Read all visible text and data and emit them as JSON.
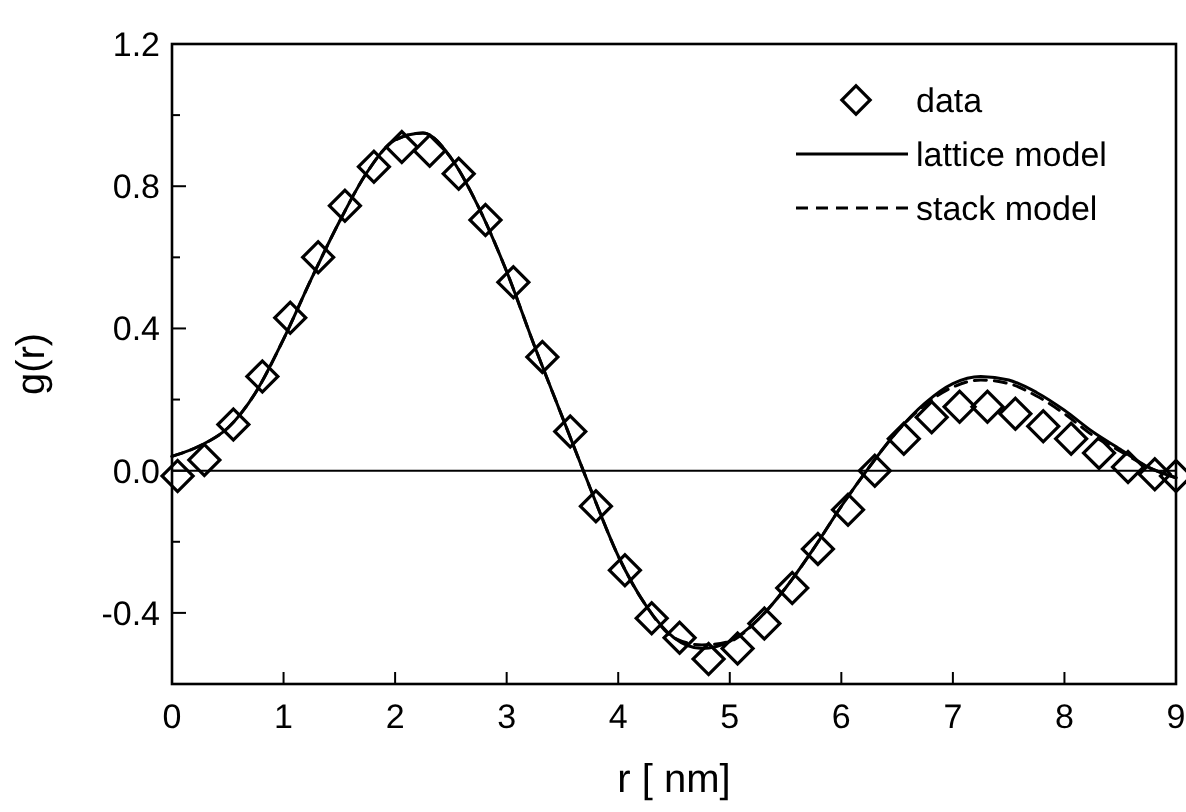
{
  "chart_data": {
    "type": "scatter",
    "xlabel": "r [ nm]",
    "ylabel": "g(r)",
    "xlim": [
      0,
      9
    ],
    "xticks": [
      0,
      1,
      2,
      3,
      4,
      5,
      6,
      7,
      8,
      9
    ],
    "ylim": [
      -0.6,
      1.2
    ],
    "yticks": [
      {
        "value": -0.6,
        "label": null
      },
      {
        "value": -0.4,
        "label": "-0.4"
      },
      {
        "value": -0.2,
        "label": null
      },
      {
        "value": 0,
        "label": "0.0"
      },
      {
        "value": 0.2,
        "label": null
      },
      {
        "value": 0.4,
        "label": "0.4"
      },
      {
        "value": 0.6,
        "label": null
      },
      {
        "value": 0.8,
        "label": "0.8"
      },
      {
        "value": 1.0,
        "label": null
      },
      {
        "value": 1.2,
        "label": "1.2"
      }
    ],
    "legend": "top right",
    "grid": false,
    "ref_lines": [
      {
        "axis": "y",
        "value": 0,
        "color": "#000000"
      }
    ],
    "series": [
      {
        "name": "data",
        "marker": "diamond",
        "color": "#000000",
        "x": [
          0.05,
          0.29,
          0.55,
          0.81,
          1.06,
          1.31,
          1.55,
          1.81,
          2.06,
          2.31,
          2.57,
          2.81,
          3.06,
          3.32,
          3.57,
          3.8,
          4.06,
          4.3,
          4.55,
          4.81,
          5.07,
          5.31,
          5.56,
          5.79,
          6.06,
          6.3,
          6.56,
          6.81,
          7.06,
          7.31,
          7.56,
          7.81,
          8.06,
          8.31,
          8.57,
          8.81,
          9.0
        ],
        "values": [
          -0.015,
          0.03,
          0.13,
          0.265,
          0.43,
          0.6,
          0.745,
          0.855,
          0.91,
          0.9,
          0.835,
          0.705,
          0.53,
          0.32,
          0.11,
          -0.1,
          -0.28,
          -0.415,
          -0.47,
          -0.53,
          -0.5,
          -0.43,
          -0.33,
          -0.22,
          -0.11,
          0.0,
          0.09,
          0.15,
          0.18,
          0.18,
          0.16,
          0.125,
          0.09,
          0.05,
          0.01,
          -0.01,
          -0.015
        ]
      },
      {
        "name": "lattice model",
        "type": "line",
        "line_style": "solid",
        "marker": "none",
        "color": "#000000",
        "x": [
          0,
          0.25,
          0.5,
          0.75,
          1,
          1.25,
          1.5,
          1.75,
          2,
          2.25,
          2.5,
          2.75,
          3,
          3.25,
          3.5,
          3.75,
          4,
          4.25,
          4.5,
          4.75,
          5,
          5.25,
          5.5,
          5.75,
          6,
          6.25,
          6.5,
          6.75,
          7,
          7.25,
          7.5,
          7.75,
          8,
          8.25,
          8.5,
          8.75,
          9
        ],
        "values": [
          0.04,
          0.07,
          0.12,
          0.22,
          0.37,
          0.54,
          0.7,
          0.84,
          0.93,
          0.95,
          0.88,
          0.74,
          0.56,
          0.35,
          0.15,
          -0.05,
          -0.24,
          -0.38,
          -0.47,
          -0.5,
          -0.48,
          -0.42,
          -0.33,
          -0.22,
          -0.1,
          0.01,
          0.11,
          0.19,
          0.245,
          0.265,
          0.255,
          0.22,
          0.17,
          0.11,
          0.06,
          0.01,
          -0.02
        ]
      },
      {
        "name": "stack model",
        "type": "line",
        "line_style": "dashed",
        "marker": "none",
        "color": "#000000",
        "x": [
          0,
          0.25,
          0.5,
          0.75,
          1,
          1.25,
          1.5,
          1.75,
          2,
          2.25,
          2.5,
          2.75,
          3,
          3.25,
          3.5,
          3.75,
          4,
          4.25,
          4.5,
          4.75,
          5,
          5.25,
          5.5,
          5.75,
          6,
          6.25,
          6.5,
          6.75,
          7,
          7.25,
          7.5,
          7.75,
          8,
          8.25,
          8.5,
          8.75,
          9
        ],
        "values": [
          0.04,
          0.07,
          0.12,
          0.22,
          0.37,
          0.54,
          0.7,
          0.84,
          0.93,
          0.95,
          0.88,
          0.74,
          0.56,
          0.35,
          0.15,
          -0.05,
          -0.24,
          -0.38,
          -0.47,
          -0.49,
          -0.48,
          -0.42,
          -0.33,
          -0.22,
          -0.1,
          0.01,
          0.11,
          0.185,
          0.235,
          0.255,
          0.245,
          0.21,
          0.16,
          0.1,
          0.055,
          0.01,
          -0.02
        ]
      }
    ]
  }
}
